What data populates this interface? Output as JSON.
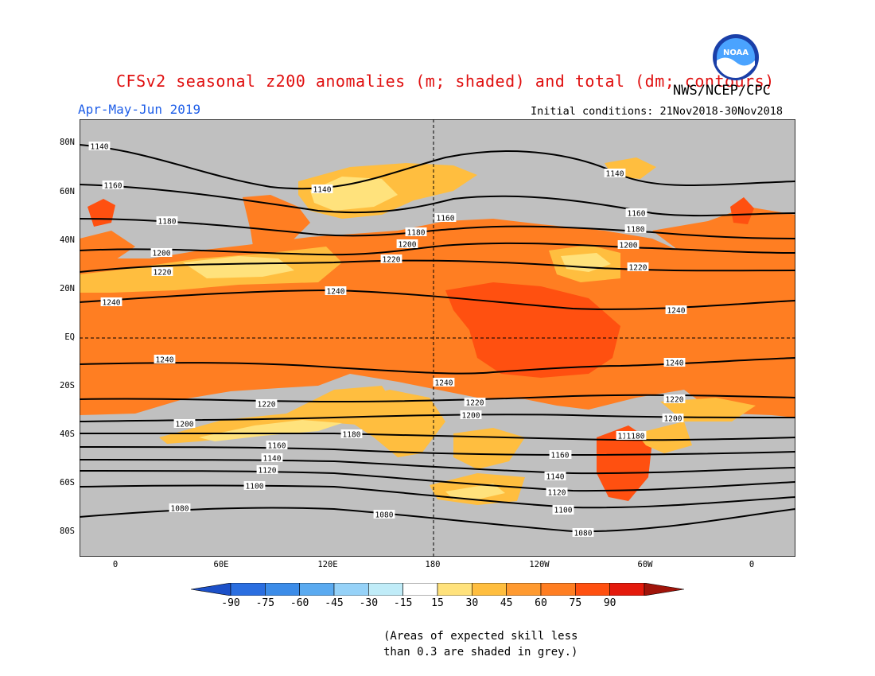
{
  "header": {
    "title": "CFSv2 seasonal z200 anomalies (m; shaded) and total (dm; contours)",
    "org": "NWS/NCEP/CPC",
    "season": "Apr-May-Jun 2019",
    "initial_conditions": "Initial conditions: 21Nov2018-30Nov2018",
    "logo_text": "NOAA"
  },
  "map": {
    "lat_labels": [
      "80N",
      "60N",
      "40N",
      "20N",
      "EQ",
      "20S",
      "40S",
      "60S",
      "80S"
    ],
    "lon_labels": [
      "0",
      "60E",
      "120E",
      "180",
      "120W",
      "60W",
      "0"
    ],
    "contour_labels": [
      "1140",
      "1160",
      "1180",
      "1200",
      "1220",
      "1240",
      "1240",
      "1220",
      "1200",
      "1180",
      "1160",
      "1140",
      "1120",
      "1100",
      "1080",
      "1140",
      "1140",
      "1160",
      "1180",
      "1200",
      "1220",
      "1240",
      "1240",
      "1220",
      "1200",
      "1180",
      "1160",
      "1140",
      "1120",
      "1100",
      "1080",
      "1160",
      "1180",
      "1180",
      "1200",
      "1220",
      "1240",
      "1240",
      "1220",
      "1200",
      "1180",
      "1160",
      "1140",
      "1120",
      "1100",
      "1080"
    ],
    "colors": {
      "grey": "#c0c0c0",
      "c15_30": "#ffe27c",
      "c30_45": "#ffbe3f",
      "c45_60": "#ff7e22",
      "c60_75": "#ff5010",
      "c75_90": "#e41a0c"
    }
  },
  "colorbar": {
    "labels": [
      "-90",
      "-75",
      "-60",
      "-45",
      "-30",
      "-15",
      "15",
      "30",
      "45",
      "60",
      "75",
      "90"
    ],
    "colors": [
      "#1c50c8",
      "#2a6ee0",
      "#3c8ce8",
      "#5aaaf0",
      "#96d2f8",
      "#c0ecf8",
      "#ffffff",
      "#ffe27c",
      "#ffbe3f",
      "#ff9a30",
      "#ff7e22",
      "#ff5010",
      "#e41a0c",
      "#a0140a"
    ]
  },
  "notes": {
    "line1": "(Areas of expected skill less",
    "line2": "than 0.3 are shaded in grey.)"
  }
}
